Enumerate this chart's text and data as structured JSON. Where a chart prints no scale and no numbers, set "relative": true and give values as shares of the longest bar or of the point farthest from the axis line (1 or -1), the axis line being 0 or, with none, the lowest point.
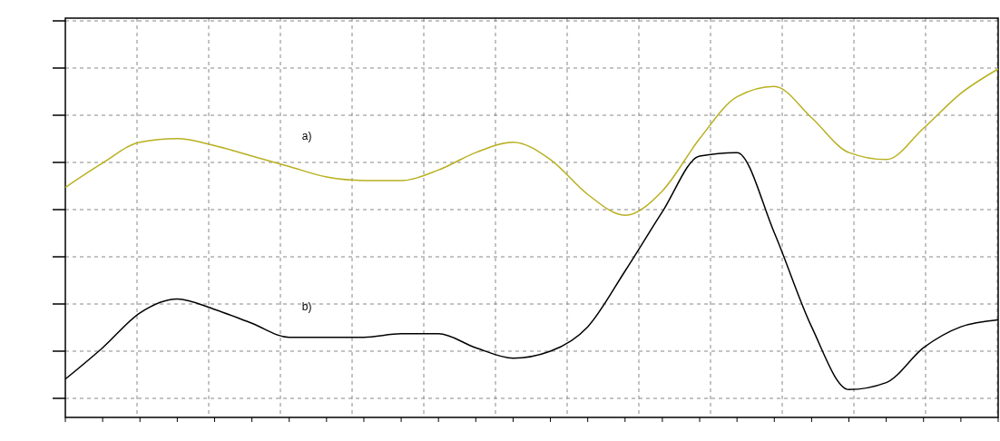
{
  "chart_data": {
    "type": "line",
    "relative": true,
    "grid": true,
    "categories": [
      null,
      null,
      null,
      null,
      null,
      null,
      null,
      null,
      null,
      null,
      null,
      null,
      null,
      null,
      null,
      null,
      null,
      null,
      null,
      null,
      null,
      null,
      null,
      null,
      null,
      null
    ],
    "series": [
      {
        "name": "a)",
        "color": "#b8b020",
        "values": [
          0.66,
          0.73,
          0.79,
          0.8,
          0.78,
          0.75,
          0.72,
          0.69,
          0.68,
          0.68,
          0.71,
          0.76,
          0.79,
          0.74,
          0.64,
          0.58,
          0.65,
          0.8,
          0.92,
          0.95,
          0.86,
          0.76,
          0.74,
          0.83,
          0.93,
          1
        ]
      },
      {
        "name": "b)",
        "color": "#000000",
        "values": [
          0.11,
          0.2,
          0.3,
          0.34,
          0.31,
          0.27,
          0.23,
          0.23,
          0.23,
          0.24,
          0.24,
          0.2,
          0.17,
          0.19,
          0.26,
          0.42,
          0.59,
          0.75,
          0.76,
          0.53,
          0.26,
          0.08,
          0.1,
          0.2,
          0.26,
          0.28
        ]
      }
    ]
  }
}
